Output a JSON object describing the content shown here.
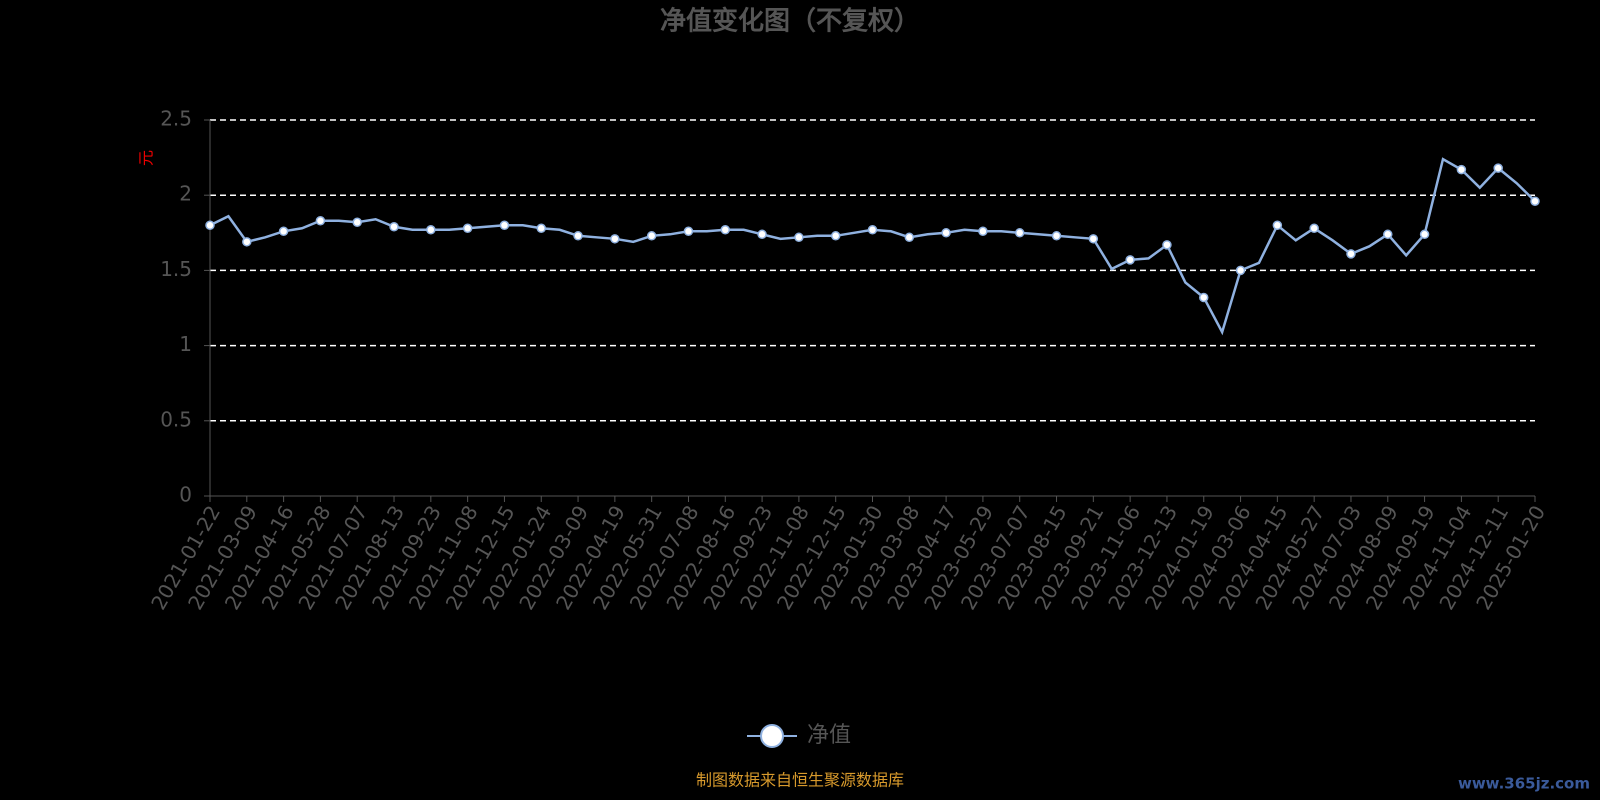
{
  "chart_data": {
    "type": "line",
    "title": "净值变化图（不复权）",
    "y_label": "元",
    "categories": [
      "2021-01-22",
      null,
      "2021-03-09",
      null,
      "2021-04-16",
      null,
      "2021-05-28",
      null,
      "2021-07-07",
      null,
      "2021-08-13",
      null,
      "2021-09-23",
      null,
      "2021-11-08",
      null,
      "2021-12-15",
      null,
      "2022-01-24",
      null,
      "2022-03-09",
      null,
      "2022-04-19",
      null,
      "2022-05-31",
      null,
      "2022-07-08",
      null,
      "2022-08-16",
      null,
      "2022-09-23",
      null,
      "2022-11-08",
      null,
      "2022-12-15",
      null,
      "2023-01-30",
      null,
      "2023-03-08",
      null,
      "2023-04-17",
      null,
      "2023-05-29",
      null,
      "2023-07-07",
      null,
      "2023-08-15",
      null,
      "2023-09-21",
      null,
      "2023-11-06",
      null,
      "2023-12-13",
      null,
      "2024-01-19",
      null,
      "2024-03-06",
      null,
      "2024-04-15",
      null,
      "2024-05-27",
      null,
      "2024-07-03",
      null,
      "2024-08-09",
      null,
      "2024-09-19",
      null,
      "2024-11-04",
      null,
      "2024-12-11",
      null,
      "2025-01-20"
    ],
    "series": [
      {
        "name": "净值",
        "color": "#8fb1e0",
        "values": [
          1.8,
          1.86,
          1.69,
          1.72,
          1.76,
          1.78,
          1.83,
          1.83,
          1.82,
          1.84,
          1.79,
          1.77,
          1.77,
          1.77,
          1.78,
          1.79,
          1.8,
          1.8,
          1.78,
          1.77,
          1.73,
          1.72,
          1.71,
          1.69,
          1.73,
          1.74,
          1.76,
          1.76,
          1.77,
          1.77,
          1.74,
          1.71,
          1.72,
          1.73,
          1.73,
          1.75,
          1.77,
          1.76,
          1.72,
          1.74,
          1.75,
          1.77,
          1.76,
          1.76,
          1.75,
          1.74,
          1.73,
          1.72,
          1.71,
          1.51,
          1.57,
          1.58,
          1.67,
          1.42,
          1.32,
          1.09,
          1.5,
          1.55,
          1.8,
          1.7,
          1.78,
          1.7,
          1.61,
          1.66,
          1.74,
          1.6,
          1.74,
          2.24,
          2.17,
          2.05,
          2.18,
          2.08,
          1.96
        ]
      }
    ],
    "ylim": [
      0,
      2.5
    ],
    "yticks": [
      0,
      0.5,
      1,
      1.5,
      2,
      2.5
    ],
    "grid": true,
    "legend": "bottom",
    "source": "制图数据来自恒生聚源数据库",
    "watermark": "www.365jz.com"
  }
}
